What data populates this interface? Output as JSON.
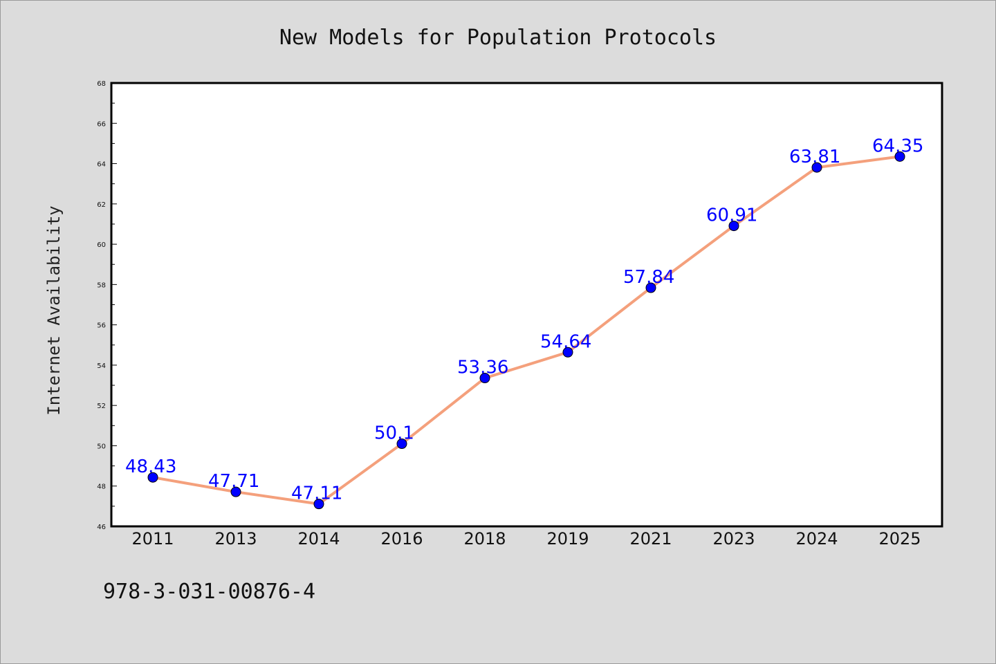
{
  "chart_data": {
    "type": "line",
    "title": "New Models for Population Protocols",
    "xlabel": "",
    "ylabel": "Internet Availability",
    "categories": [
      "2011",
      "2013",
      "2014",
      "2016",
      "2018",
      "2019",
      "2021",
      "2023",
      "2024",
      "2025"
    ],
    "series": [
      {
        "values": [
          48.43,
          47.71,
          47.11,
          50.1,
          53.36,
          54.64,
          57.84,
          60.91,
          63.81,
          64.35
        ],
        "data_labels": [
          "48.43",
          "47.71",
          "47.11",
          "50.1",
          "53.36",
          "54.64",
          "57.84",
          "60.91",
          "63.81",
          "64.35"
        ],
        "line_color": "#f4a07c",
        "marker_color": "#0000ff"
      }
    ],
    "ylim": [
      46,
      68
    ],
    "yticks": [
      "46",
      "48",
      "50",
      "52",
      "54",
      "56",
      "58",
      "60",
      "62",
      "64",
      "66",
      "68"
    ],
    "grid": false,
    "legend": "none"
  },
  "footer": {
    "isbn": "978-3-031-00876-4"
  }
}
